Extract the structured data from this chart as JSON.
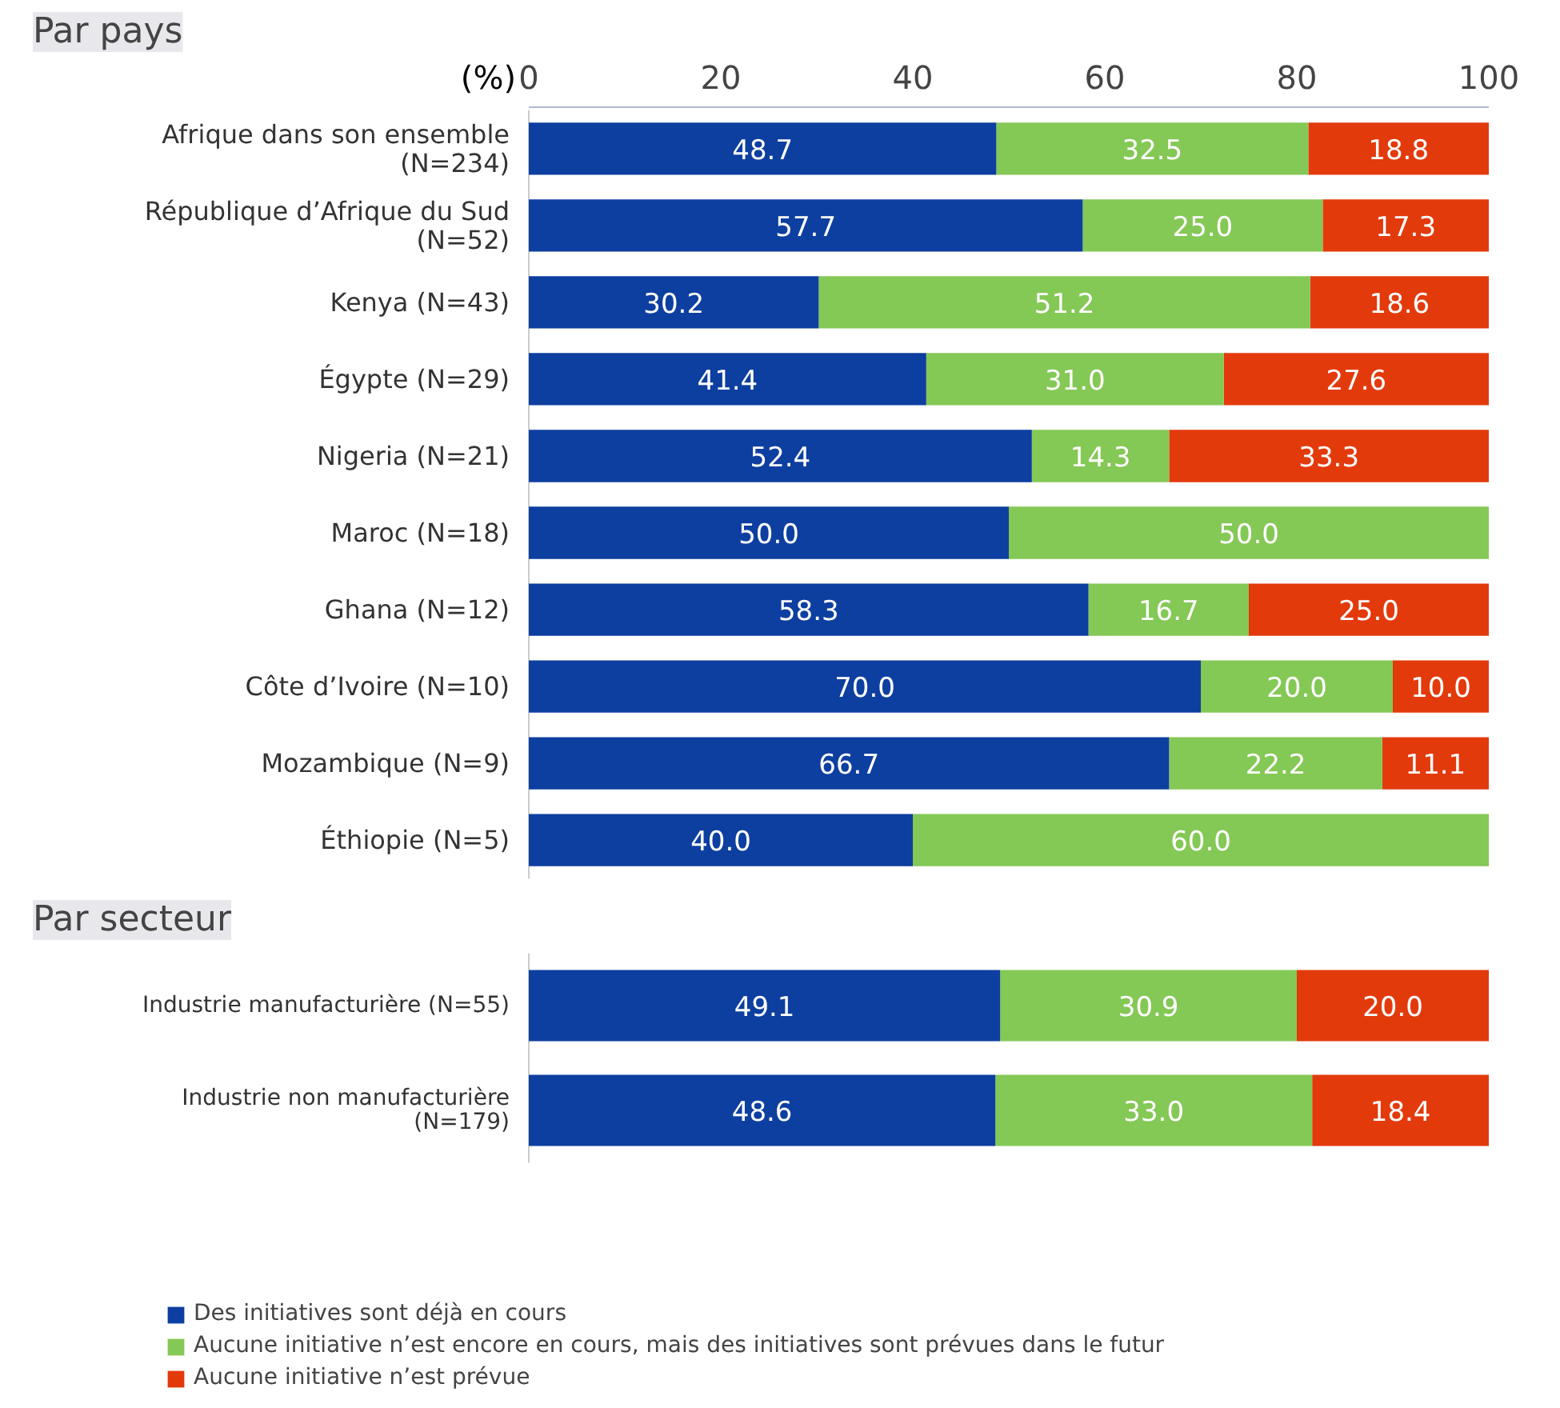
{
  "chart_data": [
    {
      "type": "bar",
      "orientation": "horizontal",
      "stacked": true,
      "title": "Par pays",
      "xlabel": "(%)",
      "xlim": [
        0,
        100
      ],
      "xticks": [
        0,
        20,
        40,
        60,
        80,
        100
      ],
      "grid": false,
      "legend": false,
      "categories": [
        "Afrique dans son ensemble\n(N=234)",
        "République d’Afrique du Sud\n(N=52)",
        "Kenya (N=43)",
        "Égypte (N=29)",
        "Nigeria (N=21)",
        "Maroc (N=18)",
        "Ghana (N=12)",
        "Côte d’Ivoire (N=10)",
        "Mozambique (N=9)",
        "Éthiopie (N=5)"
      ],
      "series": [
        {
          "color": "#0d3fa0",
          "values": [
            48.7,
            57.7,
            30.2,
            41.4,
            52.4,
            50.0,
            58.3,
            70.0,
            66.7,
            40.0
          ],
          "value_labels": [
            "48.7",
            "57.7",
            "30.2",
            "41.4",
            "52.4",
            "50.0",
            "58.3",
            "70.0",
            "66.7",
            "40.0"
          ]
        },
        {
          "color": "#84c855",
          "values": [
            32.5,
            25.0,
            51.2,
            31.0,
            14.3,
            50.0,
            16.7,
            20.0,
            22.2,
            60.0
          ],
          "value_labels": [
            "32.5",
            "25.0",
            "51.2",
            "31.0",
            "14.3",
            "50.0",
            "16.7",
            "20.0",
            "22.2",
            "60.0"
          ]
        },
        {
          "color": "#e33a0c",
          "values": [
            18.8,
            17.3,
            18.6,
            27.6,
            33.3,
            null,
            25.0,
            10.0,
            11.1,
            null
          ],
          "value_labels": [
            "18.8",
            "17.3",
            "18.6",
            "27.6",
            "33.3",
            null,
            "25.0",
            "10.0",
            "11.1",
            null
          ]
        }
      ]
    },
    {
      "type": "bar",
      "orientation": "horizontal",
      "stacked": true,
      "title": "Par secteur",
      "xlim": [
        0,
        100
      ],
      "tick_labels": "y",
      "grid": false,
      "legend": "bottom",
      "categories": [
        "Industrie manufacturière (N=55)",
        "Industrie non manufacturière\n(N=179)"
      ],
      "series": [
        {
          "name": "Des initiatives sont déjà en cours",
          "color": "#0d3fa0",
          "values": [
            49.1,
            48.6
          ],
          "value_labels": [
            "49.1",
            "48.6"
          ]
        },
        {
          "name": "Aucune initiative n’est encore en cours, mais des initiatives sont prévues dans le futur",
          "color": "#84c855",
          "values": [
            30.9,
            33.0
          ],
          "value_labels": [
            "30.9",
            "33.0"
          ]
        },
        {
          "name": "Aucune initiative n’est prévue",
          "color": "#e33a0c",
          "values": [
            20.0,
            18.4
          ],
          "value_labels": [
            "20.0",
            "18.4"
          ]
        }
      ]
    }
  ]
}
